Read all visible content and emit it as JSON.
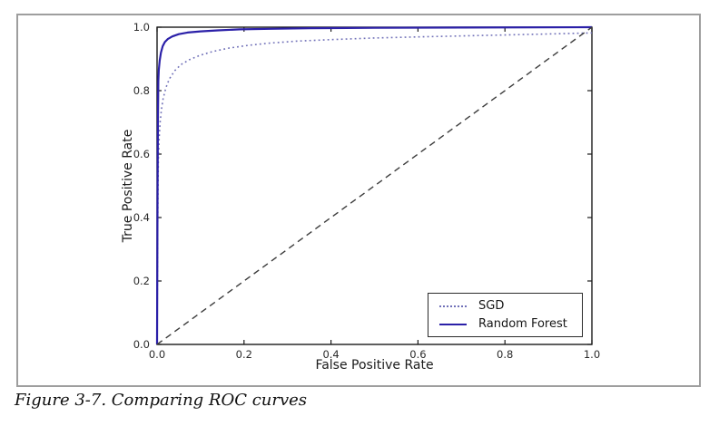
{
  "figure": {
    "caption": "Figure 3-7. Comparing ROC curves"
  },
  "chart_data": {
    "type": "line",
    "title": "",
    "xlabel": "False Positive Rate",
    "ylabel": "True Positive Rate",
    "xlim": [
      0.0,
      1.0
    ],
    "ylim": [
      0.0,
      1.0
    ],
    "xticks": [
      0.0,
      0.2,
      0.4,
      0.6,
      0.8,
      1.0
    ],
    "yticks": [
      0.0,
      0.2,
      0.4,
      0.6,
      0.8,
      1.0
    ],
    "grid": false,
    "legend_position": "lower right",
    "axis_color": "#1a1a1a",
    "tick_label_color": "#2b2b2b",
    "series": [
      {
        "name": "SGD",
        "style": "dotted",
        "color": "#7070b8",
        "in_legend": true,
        "points": [
          [
            0.0,
            0.0
          ],
          [
            0.001,
            0.3
          ],
          [
            0.002,
            0.48
          ],
          [
            0.003,
            0.58
          ],
          [
            0.005,
            0.655
          ],
          [
            0.007,
            0.7
          ],
          [
            0.01,
            0.74
          ],
          [
            0.014,
            0.775
          ],
          [
            0.02,
            0.808
          ],
          [
            0.028,
            0.836
          ],
          [
            0.04,
            0.862
          ],
          [
            0.055,
            0.882
          ],
          [
            0.075,
            0.898
          ],
          [
            0.1,
            0.912
          ],
          [
            0.13,
            0.924
          ],
          [
            0.165,
            0.934
          ],
          [
            0.21,
            0.943
          ],
          [
            0.26,
            0.95
          ],
          [
            0.32,
            0.956
          ],
          [
            0.4,
            0.961
          ],
          [
            0.5,
            0.966
          ],
          [
            0.62,
            0.97
          ],
          [
            0.75,
            0.974
          ],
          [
            0.88,
            0.978
          ],
          [
            1.0,
            0.982
          ]
        ]
      },
      {
        "name": "Random Forest",
        "style": "solid",
        "color": "#2b20a8",
        "in_legend": true,
        "points": [
          [
            0.0,
            0.0
          ],
          [
            0.001,
            0.45
          ],
          [
            0.002,
            0.72
          ],
          [
            0.003,
            0.83
          ],
          [
            0.004,
            0.865
          ],
          [
            0.006,
            0.895
          ],
          [
            0.009,
            0.92
          ],
          [
            0.013,
            0.94
          ],
          [
            0.018,
            0.953
          ],
          [
            0.025,
            0.963
          ],
          [
            0.035,
            0.971
          ],
          [
            0.05,
            0.978
          ],
          [
            0.07,
            0.983
          ],
          [
            0.1,
            0.987
          ],
          [
            0.14,
            0.99
          ],
          [
            0.19,
            0.993
          ],
          [
            0.26,
            0.995
          ],
          [
            0.35,
            0.997
          ],
          [
            0.5,
            0.998
          ],
          [
            0.7,
            0.999
          ],
          [
            1.0,
            1.0
          ]
        ]
      },
      {
        "name": "chance-diagonal",
        "style": "dashed",
        "color": "#3c3c3c",
        "in_legend": false,
        "points": [
          [
            0.0,
            0.0
          ],
          [
            1.0,
            1.0
          ]
        ]
      }
    ]
  }
}
